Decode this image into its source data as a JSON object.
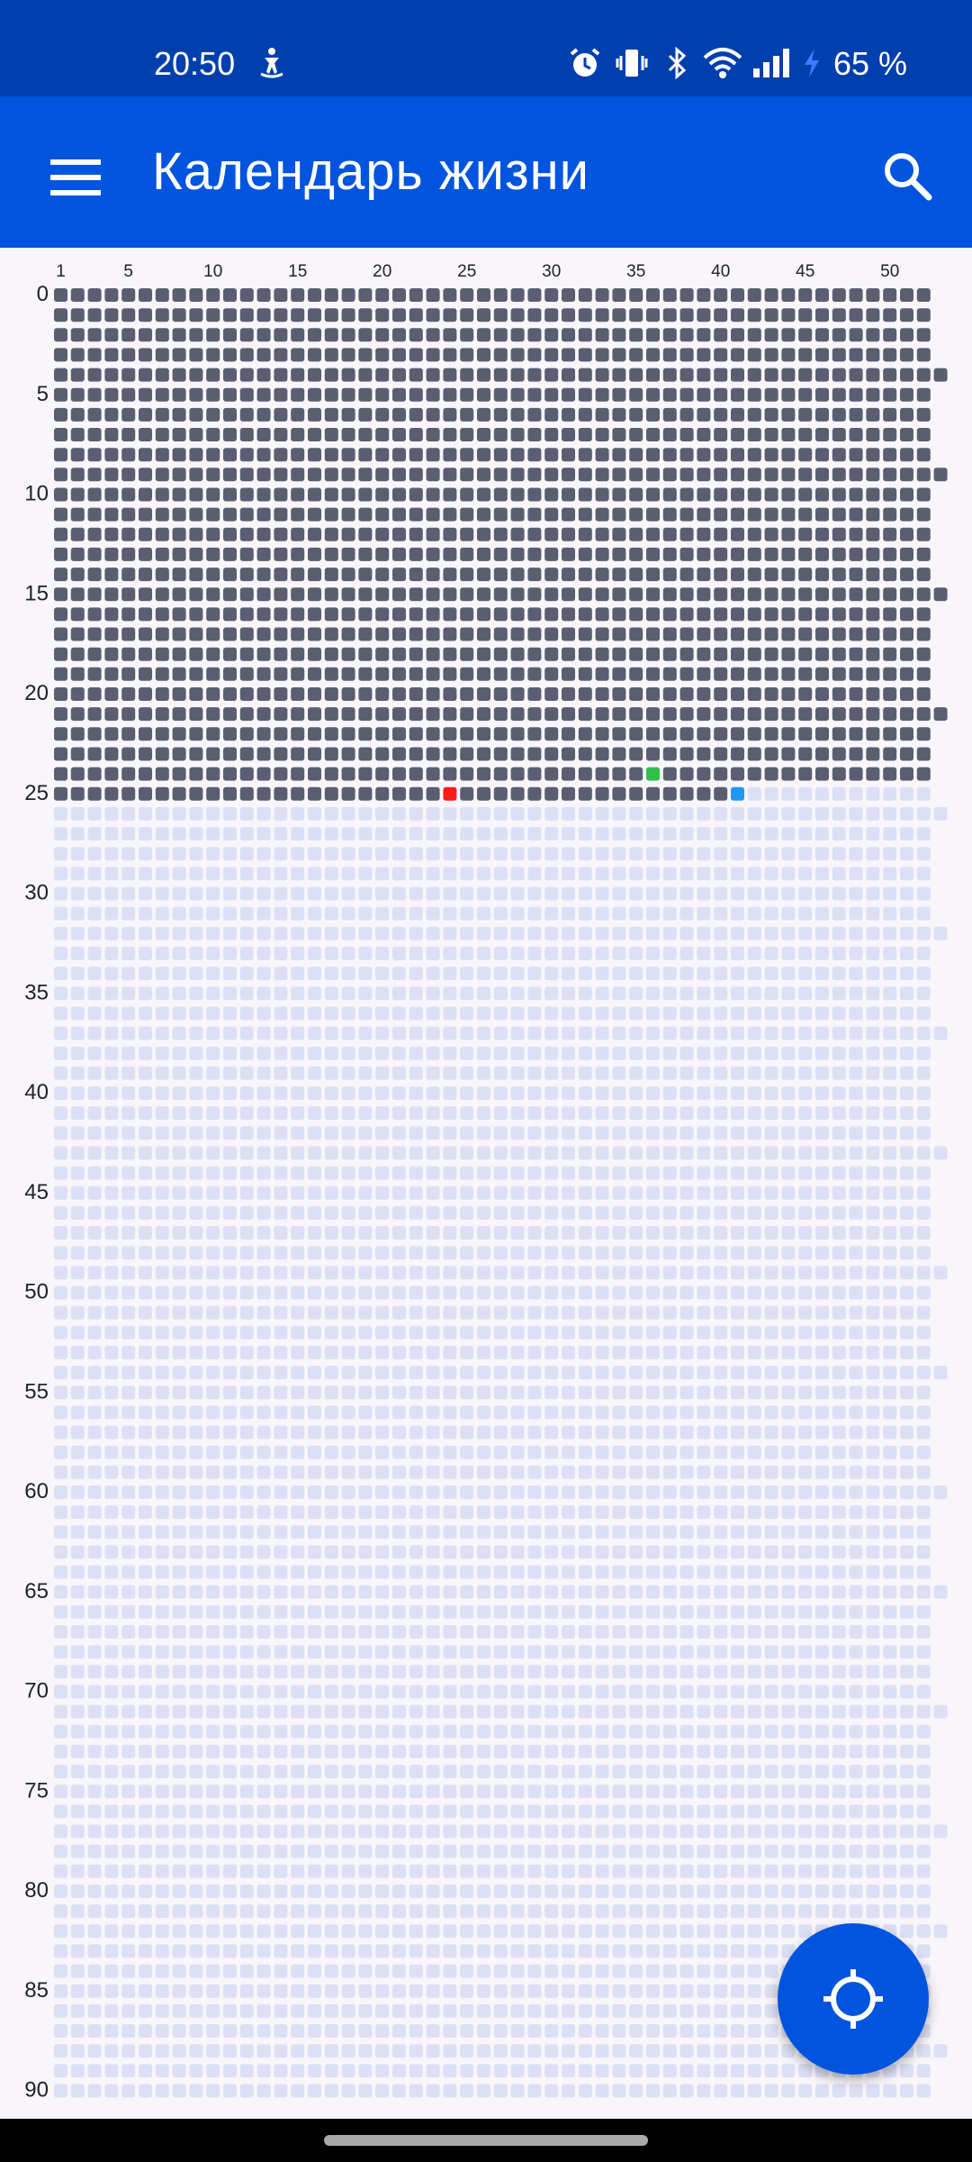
{
  "status_bar": {
    "time": "20:50",
    "battery": "65 %",
    "icons": [
      "accessibility-icon",
      "alarm-icon",
      "vibrate-icon",
      "bluetooth-icon",
      "wifi-icon",
      "signal-icon",
      "charging-icon"
    ]
  },
  "app_bar": {
    "title": "Календарь жизни",
    "menu_icon": "menu-icon",
    "search_icon": "search-icon"
  },
  "calendar": {
    "weeks_per_year": 52,
    "years": 91,
    "week_labels": [
      "1",
      "5",
      "10",
      "15",
      "20",
      "25",
      "30",
      "35",
      "40",
      "45",
      "50"
    ],
    "year_labels": [
      "0",
      "5",
      "10",
      "15",
      "20",
      "25",
      "30",
      "35",
      "40",
      "45",
      "50",
      "55",
      "60",
      "65",
      "70",
      "75",
      "80",
      "85",
      "90"
    ],
    "lived_through_year": 24,
    "current_year": 25,
    "current_year_lived_weeks": 40,
    "current_week": 41,
    "extra_week_years": [
      4,
      9,
      15,
      21,
      26,
      32,
      37,
      43,
      49,
      54,
      60,
      65,
      71,
      77,
      82,
      88
    ],
    "marks": [
      {
        "year": 24,
        "week": 36,
        "color": "#2ec04a"
      },
      {
        "year": 25,
        "week": 24,
        "color": "#ff1a1a"
      },
      {
        "year": 25,
        "week": 41,
        "color": "#2196f3"
      }
    ],
    "colors": {
      "lived": "#5b5e70",
      "future": "#dde0f4",
      "extra_lived": "#5b5e70",
      "extra_future": "#dde0f4"
    }
  },
  "fab": {
    "icon": "crosshair-icon"
  }
}
